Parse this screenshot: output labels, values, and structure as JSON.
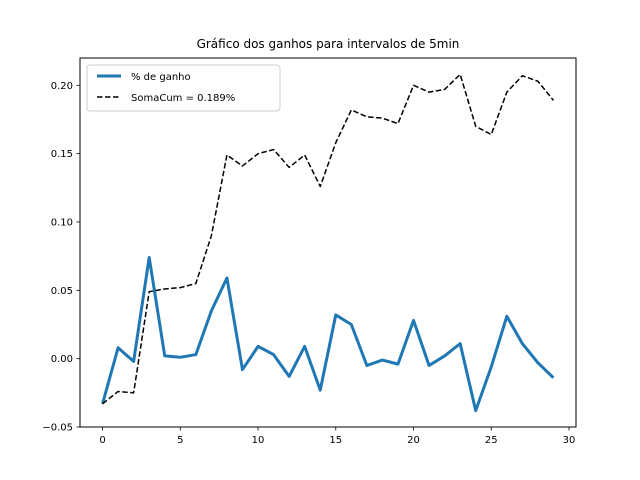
{
  "chart_data": {
    "type": "line",
    "title": "Gráfico dos ganhos para intervalos de 5min",
    "xlabel": "",
    "ylabel": "",
    "xlim": [
      -1.45,
      30.45
    ],
    "ylim": [
      -0.05,
      0.22
    ],
    "xticks": [
      0,
      5,
      10,
      15,
      20,
      25,
      30
    ],
    "xtick_labels": [
      "0",
      "5",
      "10",
      "15",
      "20",
      "25",
      "30"
    ],
    "yticks": [
      -0.05,
      0.0,
      0.05,
      0.1,
      0.15,
      0.2
    ],
    "ytick_labels": [
      "−0.05",
      "0.00",
      "0.05",
      "0.10",
      "0.15",
      "0.20"
    ],
    "grid": false,
    "legend_position": "top-left",
    "x": [
      0,
      1,
      2,
      3,
      4,
      5,
      6,
      7,
      8,
      9,
      10,
      11,
      12,
      13,
      14,
      15,
      16,
      17,
      18,
      19,
      20,
      21,
      22,
      23,
      24,
      25,
      26,
      27,
      28,
      29
    ],
    "series": [
      {
        "name": "% de ganho",
        "color": "#1f77b4",
        "style": "solid",
        "values": [
          -0.033,
          0.008,
          -0.002,
          0.074,
          0.002,
          0.001,
          0.003,
          0.035,
          0.059,
          -0.008,
          0.009,
          0.003,
          -0.013,
          0.009,
          -0.023,
          0.032,
          0.025,
          -0.005,
          -0.001,
          -0.004,
          0.028,
          -0.005,
          0.002,
          0.011,
          -0.038,
          -0.006,
          0.031,
          0.011,
          -0.003,
          -0.014
        ]
      },
      {
        "name": "SomaCum = 0.189%",
        "color": "#000000",
        "style": "dashed",
        "values": [
          -0.033,
          -0.024,
          -0.025,
          0.049,
          0.051,
          0.052,
          0.055,
          0.09,
          0.149,
          0.141,
          0.15,
          0.153,
          0.14,
          0.149,
          0.126,
          0.158,
          0.182,
          0.177,
          0.176,
          0.172,
          0.2,
          0.195,
          0.197,
          0.208,
          0.17,
          0.164,
          0.195,
          0.207,
          0.203,
          0.189
        ]
      }
    ]
  }
}
